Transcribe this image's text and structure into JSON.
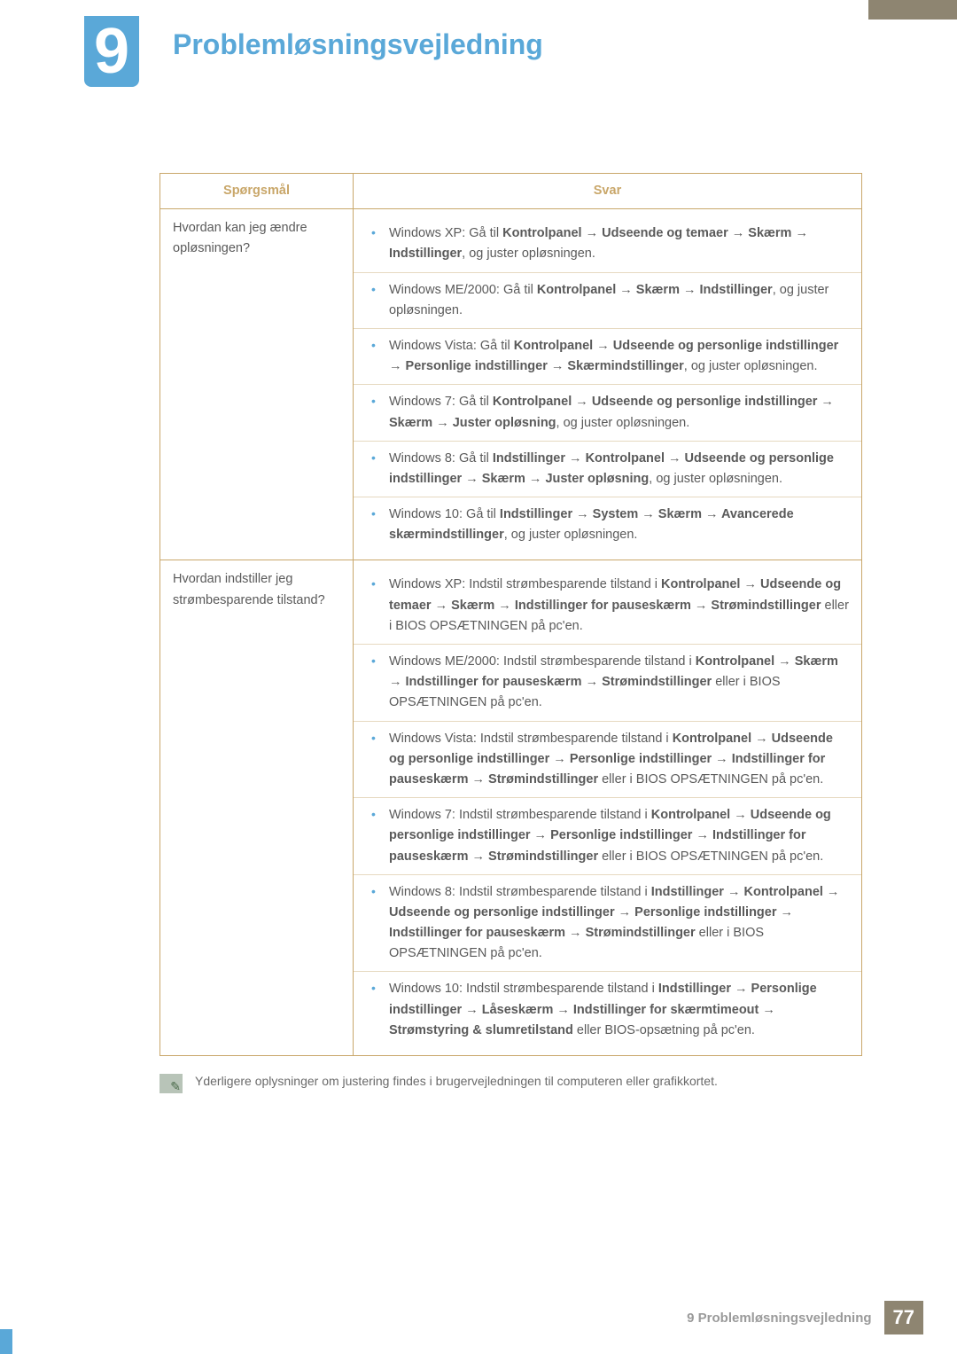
{
  "colors": {
    "accent_blue": "#5aa8d8",
    "accent_tan": "#c9a76a",
    "header_brown": "#8e8571",
    "text": "#5a5a5a",
    "sep": "#e6d9c0"
  },
  "chapter": {
    "number": "9",
    "title": "Problemløsningsvejledning"
  },
  "table": {
    "header_q": "Spørgsmål",
    "header_a": "Svar",
    "rows": [
      {
        "question": "Hvordan kan jeg ændre opløsningen?",
        "answers": [
          "Windows XP: Gå til <b>Kontrolpanel → Udseende og temaer → Skærm → Indstillinger</b>, og juster opløsningen.",
          "Windows ME/2000: Gå til <b>Kontrolpanel → Skærm → Indstillinger</b>, og juster opløsningen.",
          "Windows Vista: Gå til <b>Kontrolpanel → Udseende og personlige indstillinger → Personlige indstillinger → Skærmindstillinger</b>, og juster opløsningen.",
          "Windows 7: Gå til <b>Kontrolpanel → Udseende og personlige indstillinger → Skærm → Juster opløsning</b>, og juster opløsningen.",
          "Windows 8: Gå til <b>Indstillinger → Kontrolpanel → Udseende og personlige indstillinger → Skærm → Juster opløsning</b>, og juster opløsningen.",
          "Windows 10: Gå til <b>Indstillinger → System → Skærm → Avancerede skærmindstillinger</b>, og juster opløsningen."
        ]
      },
      {
        "question": "Hvordan indstiller jeg strømbesparende tilstand?",
        "answers": [
          "Windows XP: Indstil strømbesparende tilstand i <b>Kontrolpanel → Udseende og temaer → Skærm → Indstillinger for pauseskærm → Strømindstillinger</b> eller i BIOS OPSÆTNINGEN på pc'en.",
          "Windows ME/2000: Indstil strømbesparende tilstand i <b>Kontrolpanel → Skærm → Indstillinger for pauseskærm → Strømindstillinger</b> eller i BIOS OPSÆTNINGEN på pc'en.",
          "Windows Vista: Indstil strømbesparende tilstand i <b>Kontrolpanel → Udseende og personlige indstillinger → Personlige indstillinger → Indstillinger for pauseskærm → Strømindstillinger</b> eller i BIOS OPSÆTNINGEN på pc'en.",
          "Windows 7: Indstil strømbesparende tilstand i <b>Kontrolpanel → Udseende og personlige indstillinger → Personlige indstillinger → Indstillinger for pauseskærm → Strømindstillinger</b> eller i BIOS OPSÆTNINGEN på pc'en.",
          "Windows 8: Indstil strømbesparende tilstand i <b>Indstillinger → Kontrolpanel → Udseende og personlige indstillinger → Personlige indstillinger → Indstillinger for pauseskærm → Strømindstillinger</b> eller i BIOS OPSÆTNINGEN på pc'en.",
          "Windows 10: Indstil strømbesparende tilstand i <b>Indstillinger → Personlige indstillinger → Låseskærm → Indstillinger for skærmtimeout → Strømstyring & slumretilstand</b> eller BIOS-opsætning på pc'en."
        ]
      }
    ]
  },
  "note": "Yderligere oplysninger om justering findes i brugervejledningen til computeren eller grafikkortet.",
  "footer": {
    "text": "9 Problemløsningsvejledning",
    "page": "77"
  }
}
